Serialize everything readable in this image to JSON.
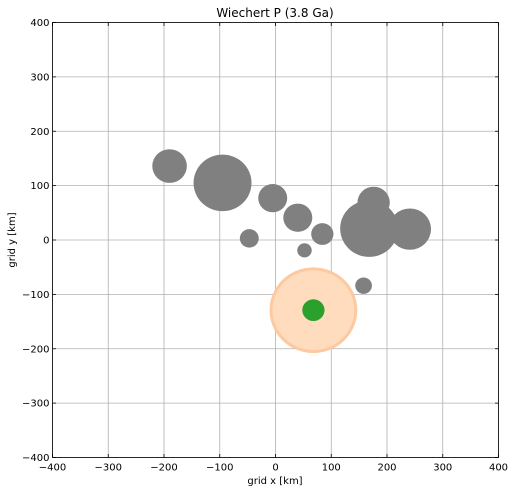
{
  "chart_data": {
    "type": "scatter",
    "title": "Wiechert P (3.8 Ga)",
    "xlabel": "grid x [km]",
    "ylabel": "grid y [km]",
    "xlim": [
      -400,
      400
    ],
    "ylim": [
      -400,
      400
    ],
    "xticks": [
      -400,
      -300,
      -200,
      -100,
      0,
      100,
      200,
      300,
      400
    ],
    "yticks": [
      -400,
      -300,
      -200,
      -100,
      0,
      100,
      200,
      300,
      400
    ],
    "grid": true,
    "highlight_region": {
      "x": 68,
      "y": -129,
      "radius_km": 76,
      "color": "#ffdcbe",
      "edge": "#fcc9a0"
    },
    "series": [
      {
        "color": "#808080",
        "points": [
          {
            "x": -190,
            "y": 136,
            "r": 31
          },
          {
            "x": -95,
            "y": 105,
            "r": 52
          },
          {
            "x": -5,
            "y": 77,
            "r": 26
          },
          {
            "x": 40,
            "y": 41,
            "r": 26
          },
          {
            "x": 84,
            "y": 11,
            "r": 20
          },
          {
            "x": -47,
            "y": 3,
            "r": 17
          },
          {
            "x": 52,
            "y": -19,
            "r": 13
          },
          {
            "x": 176,
            "y": 69,
            "r": 29
          },
          {
            "x": 168,
            "y": 21,
            "r": 52
          },
          {
            "x": 241,
            "y": 20,
            "r": 38
          },
          {
            "x": 158,
            "y": -84,
            "r": 15
          }
        ]
      },
      {
        "color": "#2ca02c",
        "points": [
          {
            "x": 68,
            "y": -129,
            "r": 20
          }
        ]
      }
    ]
  }
}
